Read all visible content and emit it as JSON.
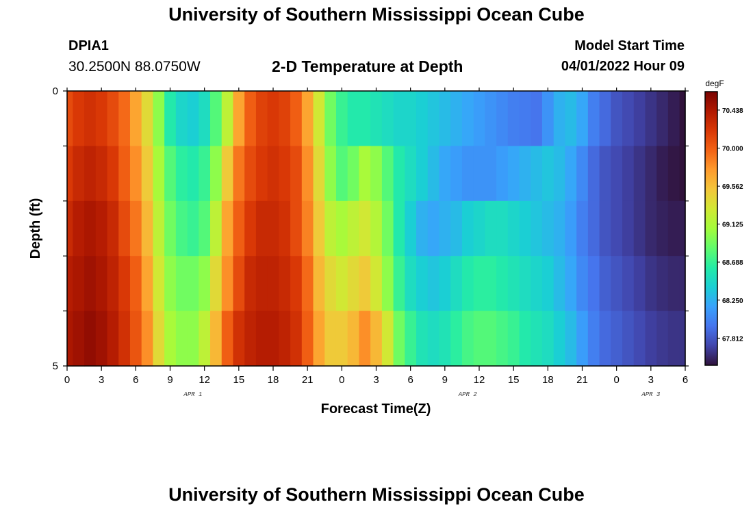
{
  "header": {
    "title": "University of Southern Mississippi Ocean Cube",
    "station": "DPIA1",
    "coords": "30.2500N  88.0750W",
    "subtitle": "2-D Temperature at Depth",
    "model_start_label": "Model Start Time",
    "model_start_value": "04/01/2022 Hour 09"
  },
  "footer": {
    "title": "University of Southern Mississippi Ocean Cube"
  },
  "chart_data": {
    "type": "heatmap",
    "title": "2-D Temperature at Depth",
    "xlabel": "Forecast Time(Z)",
    "ylabel": "Depth (ft)",
    "x_tick_labels": [
      "0",
      "3",
      "6",
      "9",
      "12",
      "15",
      "18",
      "21",
      "0",
      "3",
      "6",
      "9",
      "12",
      "15",
      "18",
      "21",
      "0",
      "3",
      "6"
    ],
    "x_range_hours": [
      0,
      54
    ],
    "date_labels": [
      {
        "label": "APR 1",
        "hour": 11
      },
      {
        "label": "APR 2",
        "hour": 35
      },
      {
        "label": "APR 3",
        "hour": 51
      }
    ],
    "y_tick_labels": [
      "0",
      "5"
    ],
    "y_range": [
      0,
      5
    ],
    "y_reversed": true,
    "depth_layers": 5,
    "colorbar": {
      "unit": "degF",
      "ticks": [
        "70.438",
        "70.000",
        "69.562",
        "69.125",
        "68.688",
        "68.250",
        "67.812"
      ],
      "tick_values": [
        70.438,
        70.0,
        69.562,
        69.125,
        68.688,
        68.25,
        67.812
      ],
      "min": 67.5,
      "max": 70.65,
      "colors": [
        "#30123b",
        "#4145ab",
        "#4675ed",
        "#39a2fc",
        "#1bcfd4",
        "#24eca6",
        "#61fc6c",
        "#a4fc3b",
        "#d1e834",
        "#f3c63a",
        "#fe9b2d",
        "#f36315",
        "#d93806",
        "#b11901",
        "#7a0403"
      ]
    },
    "time_hours": [
      0,
      1,
      2,
      3,
      4,
      5,
      6,
      7,
      8,
      9,
      10,
      11,
      12,
      13,
      14,
      15,
      16,
      17,
      18,
      19,
      20,
      21,
      22,
      23,
      24,
      25,
      26,
      27,
      28,
      29,
      30,
      31,
      32,
      33,
      34,
      35,
      36,
      37,
      38,
      39,
      40,
      41,
      42,
      43,
      44,
      45,
      46,
      47,
      48,
      49,
      50,
      51,
      52,
      53,
      54
    ],
    "temperature_by_layer": [
      [
        70.1,
        70.2,
        70.25,
        70.2,
        70.1,
        69.95,
        69.7,
        69.4,
        69.0,
        68.6,
        68.45,
        68.4,
        68.5,
        68.8,
        69.2,
        69.7,
        70.0,
        70.15,
        70.2,
        70.15,
        70.0,
        69.7,
        69.3,
        68.9,
        68.7,
        68.6,
        68.6,
        68.55,
        68.5,
        68.45,
        68.45,
        68.4,
        68.35,
        68.3,
        68.25,
        68.2,
        68.15,
        68.1,
        68.05,
        68.0,
        67.98,
        67.95,
        68.1,
        68.25,
        68.3,
        68.2,
        68.0,
        67.9,
        67.8,
        67.75,
        67.7,
        67.65,
        67.6,
        67.55,
        67.5
      ],
      [
        70.2,
        70.3,
        70.35,
        70.3,
        70.2,
        70.0,
        69.8,
        69.5,
        69.1,
        68.8,
        68.65,
        68.6,
        68.7,
        69.0,
        69.5,
        69.9,
        70.1,
        70.2,
        70.25,
        70.2,
        70.1,
        69.8,
        69.4,
        69.0,
        68.8,
        68.9,
        69.1,
        69.0,
        68.8,
        68.6,
        68.5,
        68.4,
        68.3,
        68.2,
        68.15,
        68.1,
        68.1,
        68.1,
        68.15,
        68.2,
        68.25,
        68.3,
        68.35,
        68.3,
        68.2,
        68.05,
        67.9,
        67.8,
        67.75,
        67.7,
        67.65,
        67.6,
        67.55,
        67.52,
        67.5
      ],
      [
        70.3,
        70.4,
        70.45,
        70.4,
        70.3,
        70.1,
        69.9,
        69.6,
        69.2,
        68.9,
        68.75,
        68.7,
        68.8,
        69.2,
        69.7,
        70.0,
        70.2,
        70.3,
        70.3,
        70.25,
        70.1,
        69.85,
        69.5,
        69.2,
        69.1,
        69.2,
        69.3,
        69.15,
        68.9,
        68.6,
        68.4,
        68.25,
        68.2,
        68.25,
        68.3,
        68.4,
        68.45,
        68.5,
        68.5,
        68.45,
        68.4,
        68.35,
        68.3,
        68.25,
        68.15,
        68.0,
        67.9,
        67.8,
        67.75,
        67.7,
        67.65,
        67.6,
        67.57,
        67.55,
        67.55
      ],
      [
        70.4,
        70.45,
        70.5,
        70.45,
        70.35,
        70.2,
        70.0,
        69.7,
        69.3,
        69.0,
        68.9,
        68.9,
        69.0,
        69.4,
        69.8,
        70.1,
        70.3,
        70.35,
        70.35,
        70.3,
        70.2,
        69.95,
        69.6,
        69.4,
        69.3,
        69.4,
        69.5,
        69.3,
        69.0,
        68.7,
        68.5,
        68.4,
        68.35,
        68.4,
        68.5,
        68.6,
        68.65,
        68.65,
        68.6,
        68.55,
        68.5,
        68.45,
        68.4,
        68.3,
        68.2,
        68.05,
        67.95,
        67.85,
        67.8,
        67.75,
        67.7,
        67.65,
        67.62,
        67.6,
        67.6
      ],
      [
        70.45,
        70.5,
        70.55,
        70.5,
        70.4,
        70.25,
        70.05,
        69.8,
        69.4,
        69.1,
        69.0,
        69.0,
        69.2,
        69.6,
        70.0,
        70.25,
        70.35,
        70.4,
        70.4,
        70.35,
        70.25,
        70.0,
        69.7,
        69.5,
        69.5,
        69.6,
        69.8,
        69.6,
        69.3,
        68.9,
        68.7,
        68.55,
        68.5,
        68.55,
        68.65,
        68.75,
        68.8,
        68.8,
        68.75,
        68.7,
        68.6,
        68.55,
        68.5,
        68.4,
        68.3,
        68.15,
        68.0,
        67.9,
        67.85,
        67.8,
        67.75,
        67.7,
        67.67,
        67.65,
        67.65
      ]
    ]
  }
}
